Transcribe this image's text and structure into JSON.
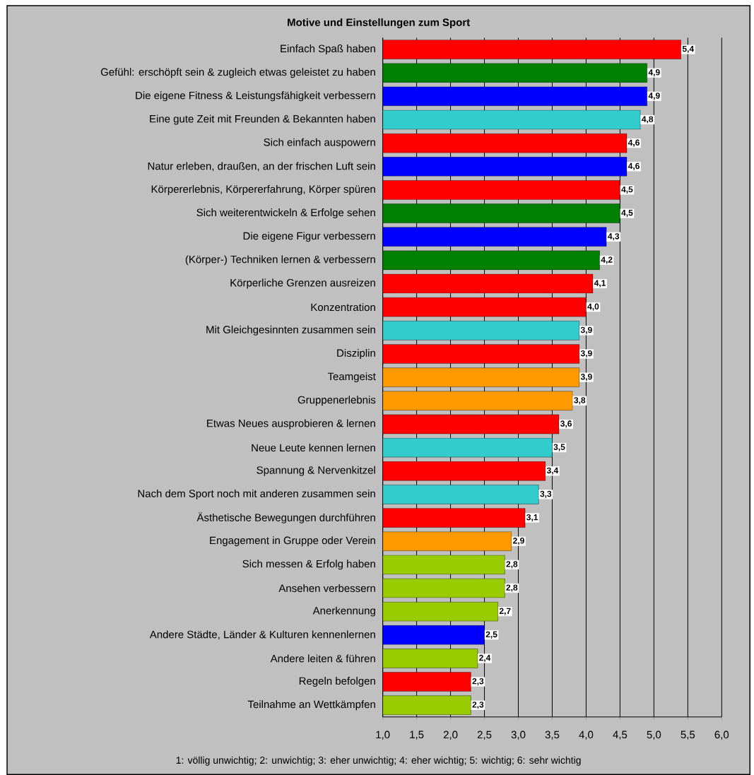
{
  "chart_data": {
    "type": "bar",
    "orientation": "horizontal",
    "title": "Motive und Einstellungen zum Sport",
    "categories": [
      "Einfach Spaß haben",
      "Gefühl: erschöpft sein & zugleich etwas geleistet zu haben",
      "Die eigene Fitness & Leistungsfähigkeit verbessern",
      "Eine gute Zeit mit Freunden & Bekannten haben",
      "Sich einfach auspowern",
      "Natur erleben, draußen, an der frischen Luft sein",
      "Körpererlebnis, Körpererfahrung, Körper spüren",
      "Sich weiterentwickeln & Erfolge sehen",
      "Die eigene Figur verbessern",
      "(Körper-) Techniken lernen & verbessern",
      "Körperliche Grenzen ausreizen",
      "Konzentration",
      "Mit Gleichgesinnten zusammen sein",
      "Disziplin",
      "Teamgeist",
      "Gruppenerlebnis",
      "Etwas Neues ausprobieren & lernen",
      "Neue Leute kennen lernen",
      "Spannung & Nervenkitzel",
      "Nach dem Sport noch mit anderen zusammen sein",
      "Ästhetische Bewegungen durchführen",
      "Engagement in Gruppe oder Verein",
      "Sich messen & Erfolg haben",
      "Ansehen verbessern",
      "Anerkennung",
      "Andere Städte, Länder & Kulturen kennenlernen",
      "Andere leiten & führen",
      "Regeln befolgen",
      "Teilnahme an Wettkämpfen"
    ],
    "values": [
      5.4,
      4.9,
      4.9,
      4.8,
      4.6,
      4.6,
      4.5,
      4.5,
      4.3,
      4.2,
      4.1,
      4.0,
      3.9,
      3.9,
      3.9,
      3.8,
      3.6,
      3.5,
      3.4,
      3.3,
      3.1,
      2.9,
      2.8,
      2.8,
      2.7,
      2.5,
      2.4,
      2.3,
      2.3
    ],
    "value_labels": [
      "5,4",
      "4,9",
      "4,9",
      "4,8",
      "4,6",
      "4,6",
      "4,5",
      "4,5",
      "4,3",
      "4,2",
      "4,1",
      "4,0",
      "3,9",
      "3,9",
      "3,9",
      "3,8",
      "3,6",
      "3,5",
      "3,4",
      "3,3",
      "3,1",
      "2,9",
      "2,8",
      "2,8",
      "2,7",
      "2,5",
      "2,4",
      "2,3",
      "2,3"
    ],
    "colors": [
      "#ff0000",
      "#008000",
      "#0000ff",
      "#33cccc",
      "#ff0000",
      "#0000ff",
      "#ff0000",
      "#008000",
      "#0000ff",
      "#008000",
      "#ff0000",
      "#ff0000",
      "#33cccc",
      "#ff0000",
      "#ff9900",
      "#ff9900",
      "#ff0000",
      "#33cccc",
      "#ff0000",
      "#33cccc",
      "#ff0000",
      "#ff9900",
      "#99cc00",
      "#99cc00",
      "#99cc00",
      "#0000ff",
      "#99cc00",
      "#ff0000",
      "#99cc00"
    ],
    "xlim": [
      1,
      6
    ],
    "xticks": [
      {
        "value": 1,
        "label": "1,0"
      },
      {
        "value": 1.5,
        "label": "1,5"
      },
      {
        "value": 2,
        "label": "2,0"
      },
      {
        "value": 2.5,
        "label": "2,5"
      },
      {
        "value": 3,
        "label": "3,0"
      },
      {
        "value": 3.5,
        "label": "3,5"
      },
      {
        "value": 4,
        "label": "4,0"
      },
      {
        "value": 4.5,
        "label": "4,5"
      },
      {
        "value": 5,
        "label": "5,0"
      },
      {
        "value": 5.5,
        "label": "5,5"
      },
      {
        "value": 6,
        "label": "6,0"
      }
    ],
    "grid": "x",
    "annotations": [
      "1: völlig unwichtig; 2: unwichtig; 3: eher unwichtig; 4: eher wichtig; 5: wichtig; 6: sehr wichtig"
    ]
  }
}
